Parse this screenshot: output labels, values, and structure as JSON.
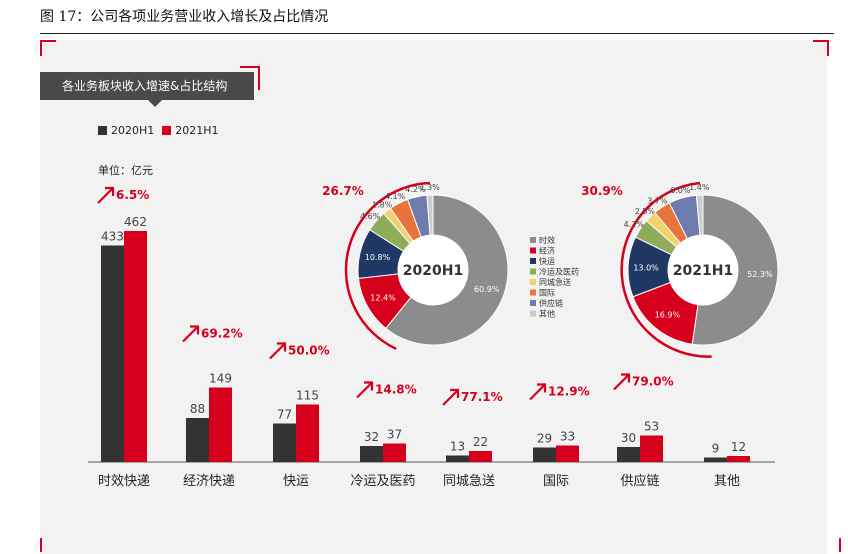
{
  "figure_caption": "图 17：公司各项业务营业收入增长及占比情况",
  "panel_title": "各业务板块收入增速&占比结构",
  "unit_label": "单位：亿元",
  "colors": {
    "s2020": "#333333",
    "s2021": "#d6001c",
    "accent": "#d6001c"
  },
  "chart_data": [
    {
      "type": "bar",
      "categories": [
        "时效快递",
        "经济快递",
        "快运",
        "冷运及医药",
        "同城急送",
        "国际",
        "供应链",
        "其他"
      ],
      "series": [
        {
          "name": "2020H1",
          "values": [
            433,
            88,
            77,
            32,
            13,
            29,
            30,
            9
          ]
        },
        {
          "name": "2021H1",
          "values": [
            462,
            149,
            115,
            37,
            22,
            33,
            53,
            12
          ]
        }
      ],
      "growth_labels": [
        "6.5%",
        "69.2%",
        "50.0%",
        "14.8%",
        "77.1%",
        "12.9%",
        "79.0%",
        ""
      ],
      "ylim": [
        0,
        500
      ],
      "legend": "top-left"
    },
    {
      "type": "pie",
      "center_label": "2020H1",
      "outer_label": "26.7%",
      "slices": [
        {
          "name": "时效",
          "value": 60.9,
          "color": "#8c8c8c"
        },
        {
          "name": "经济",
          "value": 12.4,
          "color": "#d6001c"
        },
        {
          "name": "快运",
          "value": 10.8,
          "color": "#1f3864"
        },
        {
          "name": "冷运及医药",
          "value": 4.6,
          "color": "#8fac5a"
        },
        {
          "name": "同城急送",
          "value": 1.8,
          "color": "#f0d36a"
        },
        {
          "name": "国际",
          "value": 4.1,
          "color": "#e8743b"
        },
        {
          "name": "供应链",
          "value": 4.2,
          "color": "#6e7bad"
        },
        {
          "name": "其他",
          "value": 1.3,
          "color": "#cccccc"
        }
      ],
      "labels": [
        "60.9%",
        "12.4%",
        "10.8%",
        "4.6%",
        "1.8%",
        "4.1%",
        "4.2%",
        "1.3%"
      ]
    },
    {
      "type": "pie",
      "center_label": "2021H1",
      "outer_label": "30.9%",
      "slices": [
        {
          "name": "时效",
          "value": 52.3,
          "color": "#8c8c8c"
        },
        {
          "name": "经济",
          "value": 16.9,
          "color": "#d6001c"
        },
        {
          "name": "快运",
          "value": 13.0,
          "color": "#1f3864"
        },
        {
          "name": "冷运及医药",
          "value": 4.2,
          "color": "#8fac5a"
        },
        {
          "name": "同城急送",
          "value": 2.5,
          "color": "#f0d36a"
        },
        {
          "name": "国际",
          "value": 3.7,
          "color": "#e8743b"
        },
        {
          "name": "供应链",
          "value": 6.0,
          "color": "#6e7bad"
        },
        {
          "name": "其他",
          "value": 1.4,
          "color": "#cccccc"
        }
      ],
      "labels": [
        "52.3%",
        "16.9%",
        "13.0%",
        "4.2%",
        "2.5%",
        "3.7%",
        "6.0%",
        "1.4%"
      ]
    }
  ],
  "pie_legend": [
    "时效",
    "经济",
    "快运",
    "冷运及医药",
    "同城急送",
    "国际",
    "供应链",
    "其他"
  ]
}
